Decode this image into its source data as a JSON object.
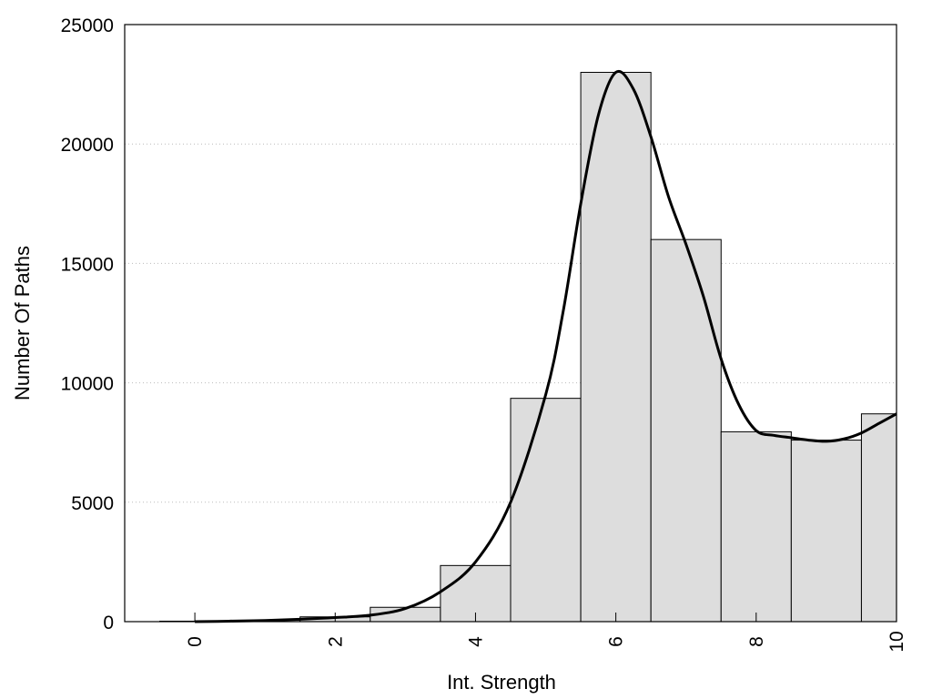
{
  "chart_data": {
    "type": "bar",
    "title": "",
    "xlabel": "Int. Strength",
    "ylabel": "Number Of Paths",
    "xlim": [
      -1,
      10
    ],
    "ylim": [
      0,
      25000
    ],
    "x_ticks": [
      0,
      2,
      4,
      6,
      8,
      10
    ],
    "x_tick_labels": [
      "0",
      "2",
      "4",
      "6",
      "8",
      "10"
    ],
    "y_ticks": [
      0,
      5000,
      10000,
      15000,
      20000,
      25000
    ],
    "y_tick_labels": [
      "0",
      "5000",
      "10000",
      "15000",
      "20000",
      "25000"
    ],
    "grid": "horizontal dotted",
    "legend": "none",
    "bars": {
      "x": [
        0,
        1,
        2,
        3,
        4,
        5,
        6,
        7,
        8,
        9,
        10
      ],
      "values": [
        20,
        60,
        200,
        600,
        2350,
        9350,
        23000,
        16000,
        7950,
        7600,
        8700
      ],
      "color": "#dddddd",
      "edge_color": "#000000"
    },
    "curve": {
      "x": [
        0,
        0.5,
        1,
        1.5,
        2,
        2.5,
        3,
        3.5,
        4,
        4.5,
        5,
        5.25,
        5.5,
        5.75,
        6,
        6.25,
        6.5,
        6.75,
        7,
        7.25,
        7.5,
        7.75,
        8,
        8.25,
        8.5,
        8.75,
        9,
        9.25,
        9.5,
        9.75,
        10
      ],
      "values": [
        0,
        20,
        50,
        100,
        170,
        270,
        550,
        1250,
        2500,
        5000,
        9500,
        13000,
        17500,
        21200,
        23000,
        22300,
        20300,
        17800,
        15800,
        13600,
        11000,
        9100,
        8000,
        7800,
        7700,
        7600,
        7550,
        7650,
        7900,
        8300,
        8700
      ],
      "color": "#000000"
    }
  }
}
